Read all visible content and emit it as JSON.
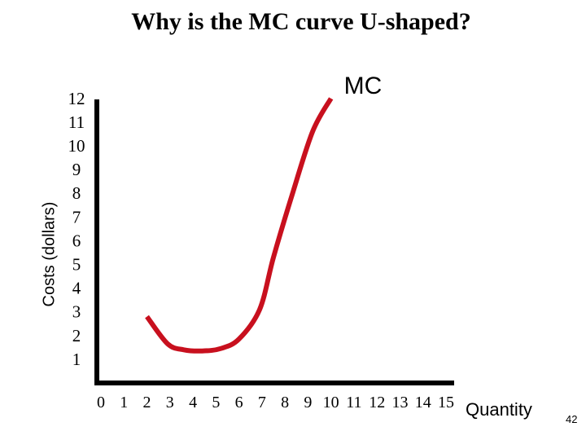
{
  "title": "Why is the MC curve U-shaped?",
  "slide_number": "42",
  "colors": {
    "curve": "#c8101e",
    "axis": "#000000"
  },
  "chart_data": {
    "type": "line",
    "title": "Why is the MC curve U-shaped?",
    "xlabel": "Quantity",
    "ylabel": "Costs (dollars)",
    "xlim": [
      0,
      15
    ],
    "ylim": [
      0,
      12.5
    ],
    "x_ticks": [
      "0",
      "1",
      "2",
      "3",
      "4",
      "5",
      "6",
      "7",
      "8",
      "9",
      "10",
      "11",
      "12",
      "13",
      "14",
      "15"
    ],
    "y_ticks": [
      "12",
      "11",
      "10",
      "9",
      "8",
      "7",
      "6",
      "5",
      "4",
      "3",
      "2",
      "1"
    ],
    "grid": false,
    "series": [
      {
        "name": "MC",
        "x": [
          2.0,
          2.9,
          3.6,
          4.4,
          5.2,
          6.0,
          6.9,
          7.5,
          8.3,
          9.2,
          10.0
        ],
        "y": [
          2.8,
          1.65,
          1.4,
          1.35,
          1.45,
          1.85,
          3.1,
          5.3,
          7.9,
          10.6,
          12.0
        ]
      }
    ]
  }
}
